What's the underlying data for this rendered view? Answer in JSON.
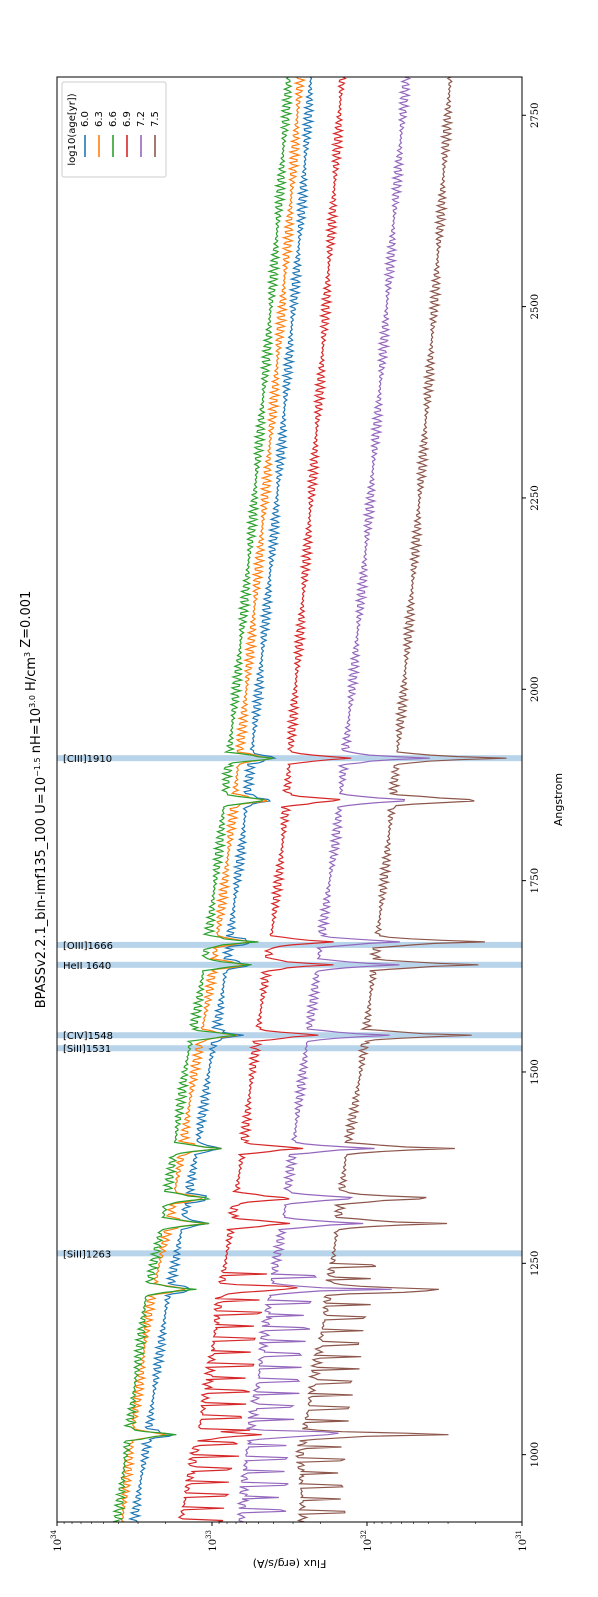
{
  "chart_data": {
    "type": "line",
    "title_prefix": "BPASSv2.2.1_bin-imf135_100 U=10",
    "title_u_exp": "−1.5",
    "title_mid": " nH=10",
    "title_nh_exp": "3.0",
    "title_suffix": " H/cm",
    "title_cm_exp": "3",
    "title_end": " Z=0.001",
    "xlabel": "Angstrom",
    "ylabel": "Flux (erg/s/A)",
    "xlim": [
      912,
      2800
    ],
    "ylim": [
      1e+31,
      1e+34
    ],
    "yscale": "log",
    "x_ticks": [
      {
        "value": 1000,
        "label": "1000"
      },
      {
        "value": 1250,
        "label": "1250"
      },
      {
        "value": 1500,
        "label": "1500"
      },
      {
        "value": 1750,
        "label": "1750"
      },
      {
        "value": 2000,
        "label": "2000"
      },
      {
        "value": 2250,
        "label": "2250"
      },
      {
        "value": 2500,
        "label": "2500"
      },
      {
        "value": 2750,
        "label": "2750"
      }
    ],
    "y_ticks": [
      {
        "value": 1e+31,
        "base": "10",
        "exp": "31"
      },
      {
        "value": 1e+32,
        "base": "10",
        "exp": "32"
      },
      {
        "value": 1e+33,
        "base": "10",
        "exp": "33"
      },
      {
        "value": 1e+34,
        "base": "10",
        "exp": "34"
      }
    ],
    "emission_lines": [
      {
        "wavelength": 1263,
        "label": "[SiII]1263"
      },
      {
        "wavelength": 1531,
        "label": "[SiII]1531"
      },
      {
        "wavelength": 1548,
        "label": "[CIV]1548"
      },
      {
        "wavelength": 1640,
        "label": "HeII 1640"
      },
      {
        "wavelength": 1666,
        "label": "[OIII]1666"
      },
      {
        "wavelength": 1910,
        "label": "[CIII]1910"
      }
    ],
    "line_band_color": "#b8d4ea",
    "legend": {
      "title": "log10(age[yr])",
      "placement": "upper-right"
    },
    "series": [
      {
        "name": "6.0",
        "color": "#1f77b4",
        "x": [
          912,
          1000,
          1100,
          1200,
          1300,
          1400,
          1500,
          1600,
          1700,
          1800,
          2000,
          2200,
          2400,
          2600,
          2800
        ],
        "y": [
          3.2e+33,
          2.7e+33,
          2.3e+33,
          1.95e+33,
          1.55e+33,
          1.25e+33,
          1.05e+33,
          8.6e+32,
          7.4e+32,
          6.4e+32,
          5e+32,
          4e+32,
          3.3e+32,
          2.7e+32,
          2.3e+32
        ]
      },
      {
        "name": "6.3",
        "color": "#ff7f0e",
        "x": [
          912,
          1000,
          1100,
          1200,
          1300,
          1400,
          1500,
          1600,
          1700,
          1800,
          2000,
          2200,
          2400,
          2600,
          2800
        ],
        "y": [
          3.8e+33,
          3.4e+33,
          2.9e+33,
          2.5e+33,
          1.9e+33,
          1.55e+33,
          1.3e+33,
          1.05e+33,
          8.9e+32,
          7.7e+32,
          6e+32,
          4.8e+32,
          3.9e+32,
          3.2e+32,
          2.7e+32
        ]
      },
      {
        "name": "6.6",
        "color": "#2ca02c",
        "x": [
          912,
          1000,
          1100,
          1200,
          1300,
          1400,
          1500,
          1600,
          1700,
          1800,
          2000,
          2200,
          2400,
          2600,
          2800
        ],
        "y": [
          4.1e+33,
          3.6e+33,
          3.1e+33,
          2.7e+33,
          2.1e+33,
          1.75e+33,
          1.5e+33,
          1.2e+33,
          1.02e+33,
          8.9e+32,
          7e+32,
          5.6e+32,
          4.6e+32,
          3.8e+32,
          3.2e+32
        ]
      },
      {
        "name": "6.9",
        "color": "#d62728",
        "x": [
          912,
          1000,
          1100,
          1200,
          1300,
          1400,
          1500,
          1600,
          1700,
          1800,
          2000,
          2200,
          2400,
          2600,
          2800
        ],
        "y": [
          1.6e+33,
          1.3e+33,
          1.05e+33,
          9e+32,
          7.5e+32,
          6.3e+32,
          5.5e+32,
          4.7e+32,
          4e+32,
          3.5e+32,
          2.9e+32,
          2.4e+32,
          2e+32,
          1.7e+32,
          1.45e+32
        ]
      },
      {
        "name": "7.2",
        "color": "#9467bd",
        "x": [
          912,
          1000,
          1100,
          1200,
          1300,
          1400,
          1500,
          1600,
          1700,
          1800,
          2000,
          2200,
          2400,
          2600,
          2800
        ],
        "y": [
          6.5e+32,
          6e+32,
          5e+32,
          4.3e+32,
          3.5e+32,
          3e+32,
          2.6e+32,
          2.2e+32,
          1.9e+32,
          1.6e+32,
          1.25e+32,
          1e+32,
          8.2e+31,
          6.8e+31,
          5.6e+31
        ]
      },
      {
        "name": "7.5",
        "color": "#8c564b",
        "x": [
          912,
          1000,
          1100,
          1200,
          1300,
          1400,
          1500,
          1600,
          1700,
          1800,
          2000,
          2200,
          2400,
          2600,
          2800
        ],
        "y": [
          2.6e+32,
          2.7e+32,
          2.2e+32,
          1.8e+32,
          1.55e+32,
          1.35e+32,
          1.1e+32,
          9.5e+31,
          8.3e+31,
          7.3e+31,
          5.8e+31,
          4.8e+31,
          4e+31,
          3.4e+31,
          2.9e+31
        ]
      }
    ]
  }
}
